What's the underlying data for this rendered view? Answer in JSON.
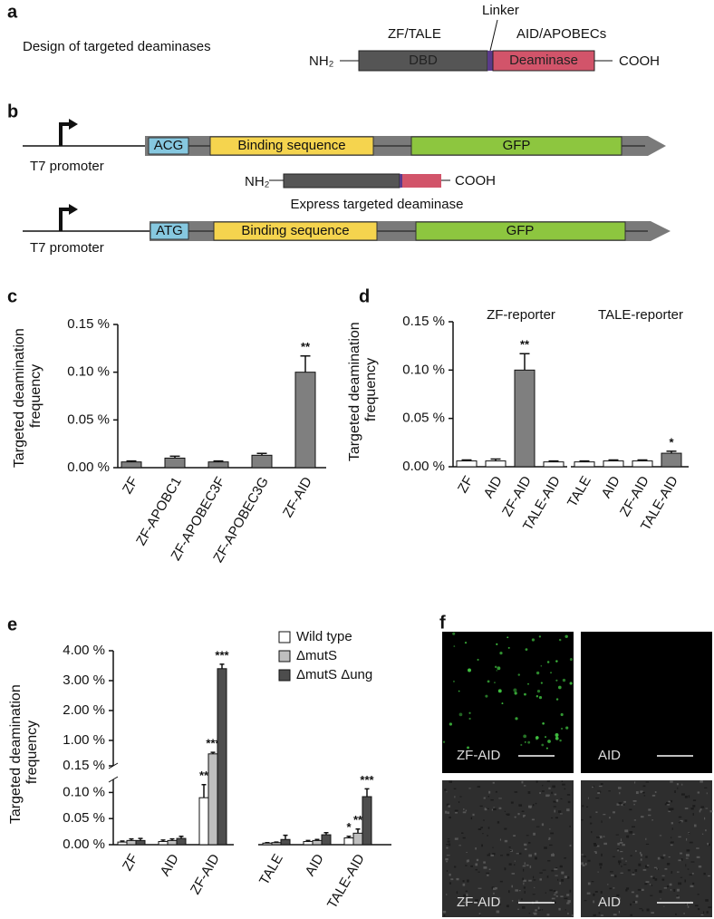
{
  "panel_labels": [
    "a",
    "b",
    "c",
    "d",
    "e",
    "f"
  ],
  "design": {
    "title": "Design of targeted deaminases",
    "dbd_group": "ZF/TALE",
    "linker": "Linker",
    "deaminase_group": "AID/APOBECs",
    "n_term": "NH₂",
    "dbd": "DBD",
    "deaminase": "Deaminase",
    "c_term": "COOH"
  },
  "reporter": {
    "top": {
      "start_codon": "ACG",
      "binding": "Binding sequence",
      "gfp": "GFP",
      "promoter": "T7 promoter"
    },
    "expression": {
      "n_term": "NH₂",
      "c_term": "COOH",
      "caption": "Express targeted deaminase"
    },
    "bottom": {
      "start_codon": "ATG",
      "binding": "Binding sequence",
      "gfp": "GFP",
      "promoter": "T7 promoter"
    }
  },
  "chart_data": [
    {
      "type": "bar",
      "ylabel": "Targeted deamination frequency",
      "categories": [
        "ZF",
        "ZF-APOBC1",
        "ZF-APOBEC3F",
        "ZF-APOBEC3G",
        "ZF-AID"
      ],
      "values": [
        0.006,
        0.01,
        0.006,
        0.013,
        0.1
      ],
      "errors": [
        0.001,
        0.002,
        0.001,
        0.002,
        0.017
      ],
      "significance": [
        null,
        null,
        null,
        null,
        "**"
      ],
      "color": "#7f7f7f",
      "ylim": [
        0,
        0.15
      ],
      "yticks": [
        {
          "value": 0,
          "label": "0.00 %"
        },
        {
          "value": 0.05,
          "label": "0.05 %"
        },
        {
          "value": 0.1,
          "label": "0.10 %"
        },
        {
          "value": 0.15,
          "label": "0.15 %"
        }
      ]
    },
    {
      "type": "bar",
      "ylabel": "Targeted deamination frequency",
      "group_labels": [
        "ZF-reporter",
        "TALE-reporter"
      ],
      "categories": [
        "ZF",
        "AID",
        "ZF-AID",
        "TALE-AID",
        "TALE",
        "AID",
        "ZF-AID",
        "TALE-AID"
      ],
      "values": [
        0.006,
        0.006,
        0.1,
        0.005,
        0.005,
        0.006,
        0.006,
        0.014
      ],
      "errors": [
        0.001,
        0.002,
        0.017,
        0.001,
        0.001,
        0.001,
        0.001,
        0.002
      ],
      "significance": [
        null,
        null,
        "**",
        null,
        null,
        null,
        null,
        "*"
      ],
      "colors": [
        "#ffffff",
        "#ffffff",
        "#7f7f7f",
        "#ffffff",
        "#ffffff",
        "#ffffff",
        "#ffffff",
        "#7f7f7f"
      ],
      "ylim": [
        0,
        0.15
      ],
      "yticks": [
        {
          "value": 0,
          "label": "0.00 %"
        },
        {
          "value": 0.05,
          "label": "0.05 %"
        },
        {
          "value": 0.1,
          "label": "0.10 %"
        },
        {
          "value": 0.15,
          "label": "0.15 %"
        }
      ]
    },
    {
      "type": "grouped_bar",
      "ylabel": "Targeted deamination frequency",
      "categories": [
        "ZF",
        "AID",
        "ZF-AID",
        "TALE",
        "AID",
        "TALE-AID"
      ],
      "series": [
        {
          "name": "Wild type",
          "color": "#ffffff",
          "values": [
            0.005,
            0.006,
            0.09,
            0.003,
            0.006,
            0.013
          ],
          "errors": [
            0.002,
            0.003,
            0.025,
            0.001,
            0.002,
            0.003
          ],
          "significance": [
            null,
            null,
            "**",
            null,
            null,
            "*"
          ]
        },
        {
          "name": "ΔmutS",
          "color": "#bfbfbf",
          "values": [
            0.008,
            0.008,
            0.55,
            0.004,
            0.008,
            0.022
          ],
          "errors": [
            0.003,
            0.003,
            0.05,
            0.001,
            0.002,
            0.008
          ],
          "significance": [
            null,
            null,
            "***",
            null,
            null,
            "**"
          ]
        },
        {
          "name": "ΔmutS Δung",
          "color": "#4d4d4d",
          "values": [
            0.008,
            0.012,
            3.4,
            0.01,
            0.019,
            0.092
          ],
          "errors": [
            0.004,
            0.004,
            0.15,
            0.008,
            0.004,
            0.015
          ],
          "significance": [
            null,
            null,
            "***",
            null,
            null,
            "***"
          ]
        }
      ],
      "ylim_segments": [
        [
          0,
          0.125
        ],
        [
          0.15,
          4
        ]
      ],
      "yticks": [
        {
          "value": 0,
          "label": "0.00 %"
        },
        {
          "value": 0.05,
          "label": "0.05 %"
        },
        {
          "value": 0.1,
          "label": "0.10 %"
        },
        {
          "value": 0.15,
          "label": "0.15 %"
        },
        {
          "value": 1,
          "label": "1.00 %"
        },
        {
          "value": 2,
          "label": "2.00 %"
        },
        {
          "value": 3,
          "label": "3.00 %"
        },
        {
          "value": 4,
          "label": "4.00 %"
        }
      ]
    }
  ],
  "micrographs": {
    "labels": [
      "ZF-AID",
      "AID",
      "ZF-AID",
      "AID"
    ]
  }
}
